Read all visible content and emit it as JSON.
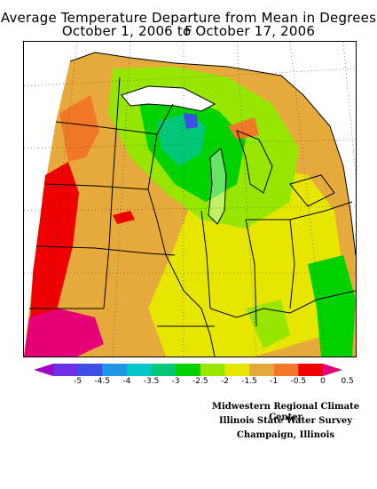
{
  "header": {
    "title_line1": "Average Temperature Departure from Mean in Degrees F",
    "title_line2": "October 1, 2006 to October 17, 2006"
  },
  "legend": {
    "tick_labels": [
      "-5",
      "-4.5",
      "-4",
      "-3.5",
      "-3",
      "-2.5",
      "-2",
      "-1.5",
      "-1",
      "-0.5",
      "0",
      "0.5"
    ],
    "colors": [
      "#a000c8",
      "#6f2fe6",
      "#3c50e6",
      "#1e96e6",
      "#00c8c8",
      "#00c878",
      "#00d200",
      "#96e600",
      "#e6e600",
      "#e6aa3c",
      "#f07828",
      "#ee0000",
      "#e60078"
    ]
  },
  "credits": {
    "line1": "Midwestern Regional Climate Center",
    "line2": "Illinois State Water Survey",
    "line3": "Champaign, Illinois"
  }
}
